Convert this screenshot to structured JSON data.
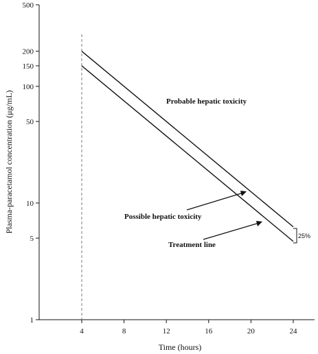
{
  "chart_data": {
    "type": "line",
    "title": "",
    "xlabel": "Time (hours)",
    "ylabel": "Plasma-paracetamol concentration (μg/mL)",
    "y_scale": "log",
    "xlim": [
      0,
      24.5
    ],
    "ylim": [
      1,
      500
    ],
    "x_ticks": [
      4,
      8,
      12,
      16,
      20,
      24
    ],
    "y_ticks": [
      1,
      5,
      10,
      50,
      100,
      150,
      200,
      500
    ],
    "grid": false,
    "legend": "none",
    "series": [
      {
        "name": "",
        "x": [
          4,
          24
        ],
        "y": [
          200,
          6.25
        ]
      },
      {
        "name": "Treatment line",
        "x": [
          4,
          24
        ],
        "y": [
          150,
          4.69
        ]
      }
    ],
    "reference_lines": [
      {
        "type": "vertical",
        "x": 4,
        "style": "dashed"
      }
    ],
    "annotations": {
      "probable": "Probable hepatic toxicity",
      "possible": "Possible hepatic toxicity",
      "treatment": "Treatment line",
      "bracket": "25%"
    },
    "colors": {
      "line": "#111111",
      "dashed": "#777777"
    }
  }
}
